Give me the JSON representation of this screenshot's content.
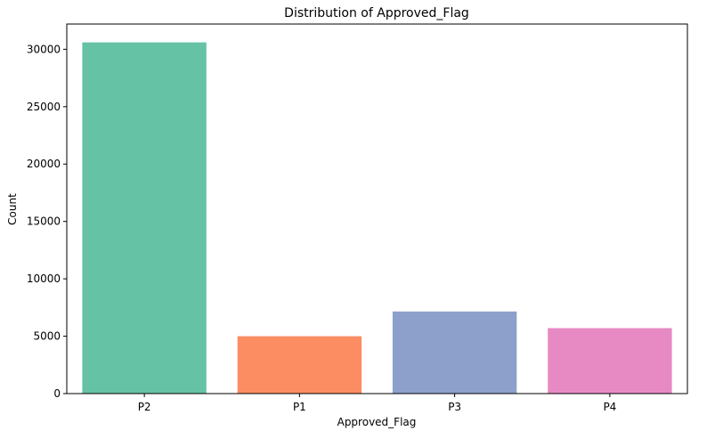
{
  "chart_data": {
    "type": "bar",
    "title": "Distribution of Approved_Flag",
    "xlabel": "Approved_Flag",
    "ylabel": "Count",
    "categories": [
      "P2",
      "P1",
      "P3",
      "P4"
    ],
    "values": [
      30600,
      5000,
      7150,
      5700
    ],
    "colors": [
      "#66c2a5",
      "#fc8d62",
      "#8da0cb",
      "#e78ac3"
    ],
    "ylim": [
      0,
      32200
    ],
    "yticks": [
      0,
      5000,
      10000,
      15000,
      20000,
      25000,
      30000
    ],
    "grid": false,
    "legend": "none"
  }
}
